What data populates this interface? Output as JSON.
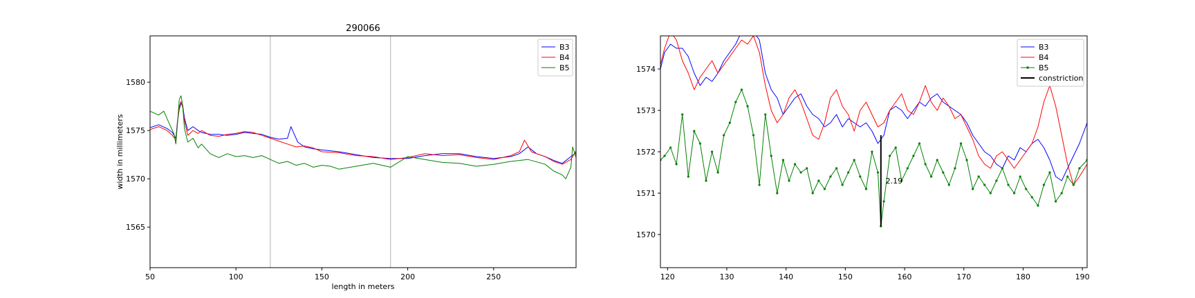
{
  "chart_data": [
    {
      "type": "line",
      "title": "290066",
      "xlabel": "length in meters",
      "ylabel": "width in millimeters",
      "xlim": [
        50,
        298
      ],
      "ylim": [
        1560.8,
        1584.8
      ],
      "xticks": [
        50,
        100,
        150,
        200,
        250
      ],
      "yticks": [
        1565,
        1570,
        1575,
        1580
      ],
      "vlines": [
        120,
        190
      ],
      "grid": false,
      "legend": "top-right",
      "series": [
        {
          "name": "B3",
          "color": "#0000ff",
          "x": [
            50,
            55,
            60,
            63,
            65,
            66,
            67,
            68,
            69,
            70,
            72,
            75,
            78,
            80,
            85,
            90,
            95,
            100,
            105,
            110,
            115,
            120,
            125,
            130,
            132,
            134,
            136,
            140,
            145,
            150,
            160,
            170,
            180,
            190,
            200,
            210,
            220,
            230,
            240,
            250,
            260,
            265,
            270,
            275,
            280,
            285,
            290,
            295,
            298
          ],
          "y": [
            1575.3,
            1575.6,
            1575.2,
            1574.8,
            1574.2,
            1576,
            1577.2,
            1577.8,
            1577.6,
            1576.3,
            1575.0,
            1575.4,
            1575.0,
            1574.8,
            1574.6,
            1574.6,
            1574.5,
            1574.6,
            1574.8,
            1574.7,
            1574.6,
            1574.3,
            1574.1,
            1574.2,
            1575.4,
            1574.6,
            1573.8,
            1573.3,
            1573.1,
            1573.0,
            1572.8,
            1572.5,
            1572.2,
            1572.1,
            1572.1,
            1572.4,
            1572.6,
            1572.6,
            1572.3,
            1572.1,
            1572.3,
            1572.6,
            1573.3,
            1572.6,
            1572.3,
            1571.9,
            1571.6,
            1572.3,
            1572.7
          ]
        },
        {
          "name": "B4",
          "color": "#ff0000",
          "x": [
            50,
            55,
            60,
            63,
            65,
            66,
            67,
            68,
            69,
            70,
            72,
            75,
            78,
            80,
            85,
            90,
            95,
            100,
            105,
            110,
            115,
            120,
            125,
            130,
            135,
            140,
            145,
            150,
            160,
            170,
            180,
            190,
            200,
            210,
            220,
            230,
            240,
            250,
            260,
            265,
            268,
            270,
            272,
            275,
            280,
            285,
            290,
            295,
            298
          ],
          "y": [
            1575.1,
            1575.4,
            1575.0,
            1574.5,
            1574.0,
            1575.8,
            1577.5,
            1578.0,
            1577.4,
            1576.0,
            1574.5,
            1575.0,
            1574.7,
            1575.0,
            1574.5,
            1574.4,
            1574.6,
            1574.7,
            1574.9,
            1574.8,
            1574.5,
            1574.2,
            1573.9,
            1573.6,
            1573.3,
            1573.4,
            1573.2,
            1572.8,
            1572.7,
            1572.4,
            1572.3,
            1572.0,
            1572.2,
            1572.6,
            1572.4,
            1572.5,
            1572.2,
            1572.0,
            1572.4,
            1572.8,
            1574.0,
            1573.4,
            1572.8,
            1572.6,
            1572.3,
            1571.8,
            1571.5,
            1572.0,
            1572.9
          ]
        },
        {
          "name": "B5",
          "color": "#008000",
          "x": [
            50,
            55,
            58,
            60,
            62,
            64,
            65,
            66,
            67,
            68,
            69,
            70,
            72,
            75,
            78,
            80,
            85,
            90,
            95,
            100,
            105,
            110,
            115,
            120,
            125,
            130,
            135,
            140,
            145,
            150,
            155,
            160,
            170,
            180,
            190,
            200,
            210,
            220,
            230,
            240,
            250,
            260,
            270,
            280,
            285,
            290,
            292,
            295,
            296,
            298
          ],
          "y": [
            1577.0,
            1576.6,
            1577.0,
            1576.2,
            1575.4,
            1574.6,
            1573.6,
            1575.8,
            1578.2,
            1578.6,
            1577.6,
            1575.2,
            1573.8,
            1574.2,
            1573.2,
            1573.6,
            1572.6,
            1572.2,
            1572.6,
            1572.3,
            1572.4,
            1572.2,
            1572.4,
            1572.0,
            1571.6,
            1571.8,
            1571.4,
            1571.6,
            1571.2,
            1571.4,
            1571.3,
            1571.0,
            1571.3,
            1571.6,
            1571.2,
            1572.3,
            1572.0,
            1571.7,
            1571.6,
            1571.3,
            1571.5,
            1571.8,
            1572.0,
            1571.5,
            1570.8,
            1570.4,
            1570.0,
            1571.2,
            1573.3,
            1572.2
          ]
        }
      ]
    },
    {
      "type": "line",
      "title": "",
      "xlabel": "",
      "ylabel": "",
      "xlim": [
        118.8,
        190.8
      ],
      "ylim": [
        1569.2,
        1574.8
      ],
      "xticks": [
        120,
        130,
        140,
        150,
        160,
        170,
        180,
        190
      ],
      "yticks": [
        1570,
        1571,
        1572,
        1573,
        1574
      ],
      "grid": false,
      "legend": "top-right",
      "annotation": {
        "text": "2.19",
        "x": 156.8,
        "y": 1571.3
      },
      "series": [
        {
          "name": "B3",
          "color": "#0000ff",
          "markers": false,
          "x": [
            118.8,
            119.5,
            120.5,
            121.5,
            122.5,
            123.5,
            124.5,
            125.5,
            126.5,
            127.5,
            128.5,
            129.5,
            130.5,
            131.5,
            132.5,
            133.5,
            134.5,
            135.5,
            136.5,
            137.5,
            138.5,
            139.5,
            140.5,
            141.5,
            142.5,
            143.5,
            144.5,
            145.5,
            146.5,
            147.5,
            148.5,
            149.5,
            150.5,
            151.5,
            152.5,
            153.5,
            154.5,
            155.5,
            156.5,
            157.5,
            158.5,
            159.5,
            160.5,
            161.5,
            162.5,
            163.5,
            164.5,
            165.5,
            166.5,
            167.5,
            168.5,
            169.5,
            170.5,
            171.5,
            172.5,
            173.5,
            174.5,
            175.5,
            176.5,
            177.5,
            178.5,
            179.5,
            180.5,
            181.5,
            182.5,
            183.5,
            184.5,
            185.5,
            186.5,
            187.5,
            188.5,
            189.5,
            190.8
          ],
          "y": [
            1574.0,
            1574.4,
            1574.6,
            1574.5,
            1574.5,
            1574.3,
            1573.9,
            1573.6,
            1573.8,
            1573.7,
            1573.9,
            1574.2,
            1574.4,
            1574.6,
            1574.9,
            1574.8,
            1574.9,
            1574.7,
            1573.9,
            1573.5,
            1573.3,
            1572.9,
            1573.1,
            1573.3,
            1573.4,
            1573.1,
            1572.9,
            1572.8,
            1572.6,
            1572.7,
            1572.9,
            1572.6,
            1572.8,
            1572.7,
            1572.6,
            1572.7,
            1572.5,
            1572.2,
            1572.4,
            1573.0,
            1573.1,
            1573.0,
            1572.8,
            1573.0,
            1573.2,
            1573.1,
            1573.3,
            1573.4,
            1573.2,
            1573.1,
            1573.0,
            1572.9,
            1572.7,
            1572.4,
            1572.2,
            1572.0,
            1571.9,
            1571.7,
            1571.6,
            1571.9,
            1571.8,
            1572.1,
            1572.0,
            1572.2,
            1572.3,
            1572.1,
            1571.8,
            1571.4,
            1571.3,
            1571.6,
            1571.9,
            1572.2,
            1572.7
          ]
        },
        {
          "name": "B4",
          "color": "#ff0000",
          "markers": false,
          "x": [
            118.8,
            119.5,
            120.5,
            121.5,
            122.5,
            123.5,
            124.5,
            125.5,
            126.5,
            127.5,
            128.5,
            129.5,
            130.5,
            131.5,
            132.5,
            133.5,
            134.5,
            135.5,
            136.5,
            137.5,
            138.5,
            139.5,
            140.5,
            141.5,
            142.5,
            143.5,
            144.5,
            145.5,
            146.5,
            147.5,
            148.5,
            149.5,
            150.5,
            151.5,
            152.5,
            153.5,
            154.5,
            155.5,
            156.5,
            157.5,
            158.5,
            159.5,
            160.5,
            161.5,
            162.5,
            163.5,
            164.5,
            165.5,
            166.5,
            167.5,
            168.5,
            169.5,
            170.5,
            171.5,
            172.5,
            173.5,
            174.5,
            175.5,
            176.5,
            177.5,
            178.5,
            179.5,
            180.5,
            181.5,
            182.5,
            183.5,
            184.5,
            185.5,
            186.5,
            187.5,
            188.5,
            189.5,
            190.8
          ],
          "y": [
            1574.1,
            1574.5,
            1574.9,
            1574.7,
            1574.2,
            1573.9,
            1573.5,
            1573.8,
            1574.0,
            1574.2,
            1573.9,
            1574.1,
            1574.3,
            1574.5,
            1574.7,
            1574.6,
            1574.8,
            1574.4,
            1573.6,
            1573.0,
            1572.7,
            1572.9,
            1573.3,
            1573.5,
            1573.2,
            1572.8,
            1572.4,
            1572.3,
            1572.7,
            1573.3,
            1573.5,
            1573.1,
            1572.9,
            1572.5,
            1573.0,
            1573.2,
            1572.9,
            1572.6,
            1572.7,
            1573.0,
            1573.2,
            1573.4,
            1573.0,
            1572.9,
            1573.2,
            1573.6,
            1573.2,
            1573.0,
            1573.3,
            1573.1,
            1572.8,
            1572.9,
            1572.6,
            1572.3,
            1571.9,
            1571.7,
            1571.6,
            1571.9,
            1572.0,
            1571.8,
            1571.6,
            1571.8,
            1572.0,
            1572.2,
            1572.6,
            1573.2,
            1573.6,
            1573.1,
            1572.4,
            1571.7,
            1571.2,
            1571.4,
            1571.7
          ]
        },
        {
          "name": "B5",
          "color": "#008000",
          "markers": true,
          "x": [
            118.8,
            119.5,
            120.5,
            121.5,
            122.5,
            123.5,
            124.5,
            125.5,
            126.5,
            127.5,
            128.5,
            129.5,
            130.5,
            131.5,
            132.5,
            133.5,
            134.5,
            135.5,
            136.5,
            137.5,
            138.5,
            139.5,
            140.5,
            141.5,
            142.5,
            143.5,
            144.5,
            145.5,
            146.5,
            147.5,
            148.5,
            149.5,
            150.5,
            151.5,
            152.5,
            153.5,
            154.5,
            155.5,
            156.0,
            156.5,
            157.5,
            158.5,
            159.5,
            160.5,
            161.5,
            162.5,
            163.5,
            164.5,
            165.5,
            166.5,
            167.5,
            168.5,
            169.5,
            170.5,
            171.5,
            172.5,
            173.5,
            174.5,
            175.5,
            176.5,
            177.5,
            178.5,
            179.5,
            180.5,
            181.5,
            182.5,
            183.5,
            184.5,
            185.5,
            186.5,
            187.5,
            188.5,
            189.5,
            190.8
          ],
          "y": [
            1571.8,
            1571.9,
            1572.1,
            1571.7,
            1572.9,
            1571.4,
            1572.5,
            1572.2,
            1571.3,
            1572.0,
            1571.5,
            1572.4,
            1572.7,
            1573.2,
            1573.5,
            1573.1,
            1572.4,
            1571.2,
            1572.9,
            1571.9,
            1571.0,
            1571.8,
            1571.3,
            1571.7,
            1571.5,
            1571.6,
            1571.0,
            1571.3,
            1571.1,
            1571.4,
            1571.6,
            1571.2,
            1571.5,
            1571.8,
            1571.4,
            1571.1,
            1572.0,
            1571.5,
            1570.2,
            1570.8,
            1571.9,
            1572.1,
            1571.3,
            1571.6,
            1571.9,
            1572.2,
            1571.7,
            1571.4,
            1571.8,
            1571.5,
            1571.2,
            1571.6,
            1572.2,
            1571.8,
            1571.1,
            1571.4,
            1571.2,
            1571.0,
            1571.3,
            1571.6,
            1571.2,
            1571.0,
            1571.4,
            1571.1,
            1570.9,
            1570.7,
            1571.2,
            1571.5,
            1570.8,
            1571.0,
            1571.4,
            1571.2,
            1571.6,
            1571.8
          ]
        },
        {
          "name": "constriction",
          "color": "#000000",
          "markers": false,
          "linewidth": 2,
          "x": [
            156.0,
            156.0
          ],
          "y": [
            1572.4,
            1570.2
          ]
        }
      ]
    }
  ]
}
